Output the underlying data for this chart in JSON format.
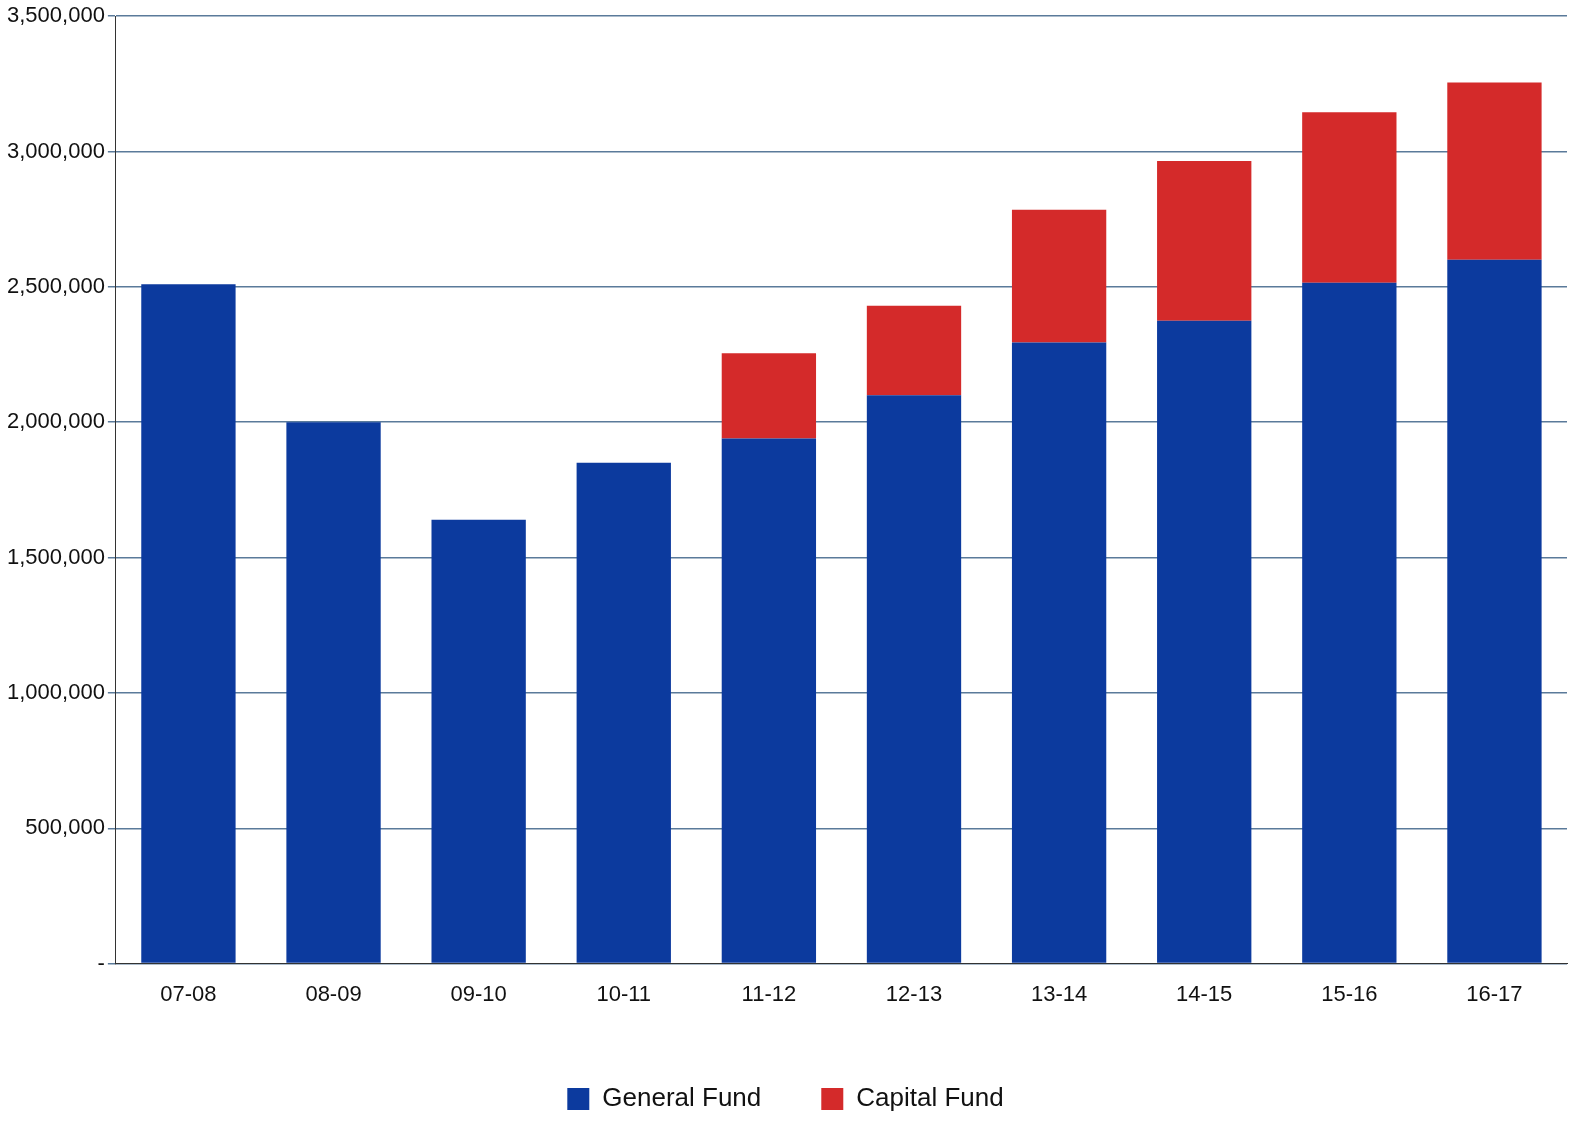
{
  "chart_data": {
    "type": "bar",
    "stacked": true,
    "categories": [
      "07-08",
      "08-09",
      "09-10",
      "10-11",
      "11-12",
      "12-13",
      "13-14",
      "14-15",
      "15-16",
      "16-17"
    ],
    "series": [
      {
        "name": "General Fund",
        "color": "#0c3a9e",
        "values": [
          2510000,
          2000000,
          1640000,
          1850000,
          1940000,
          2100000,
          2295000,
          2375000,
          2515000,
          2600000
        ]
      },
      {
        "name": "Capital Fund",
        "color": "#d42a2a",
        "values": [
          null,
          null,
          null,
          null,
          315000,
          330000,
          490000,
          590000,
          630000,
          655000
        ]
      }
    ],
    "ylim": [
      0,
      3500000
    ],
    "yticks": [
      {
        "value": 0,
        "label": "-"
      },
      {
        "value": 500000,
        "label": "500,000"
      },
      {
        "value": 1000000,
        "label": "1,000,000"
      },
      {
        "value": 1500000,
        "label": "1,500,000"
      },
      {
        "value": 2000000,
        "label": "2,000,000"
      },
      {
        "value": 2500000,
        "label": "2,500,000"
      },
      {
        "value": 3000000,
        "label": "3,000,000"
      },
      {
        "value": 3500000,
        "label": "3,500,000"
      }
    ],
    "grid": "y",
    "legend": "bottom"
  }
}
